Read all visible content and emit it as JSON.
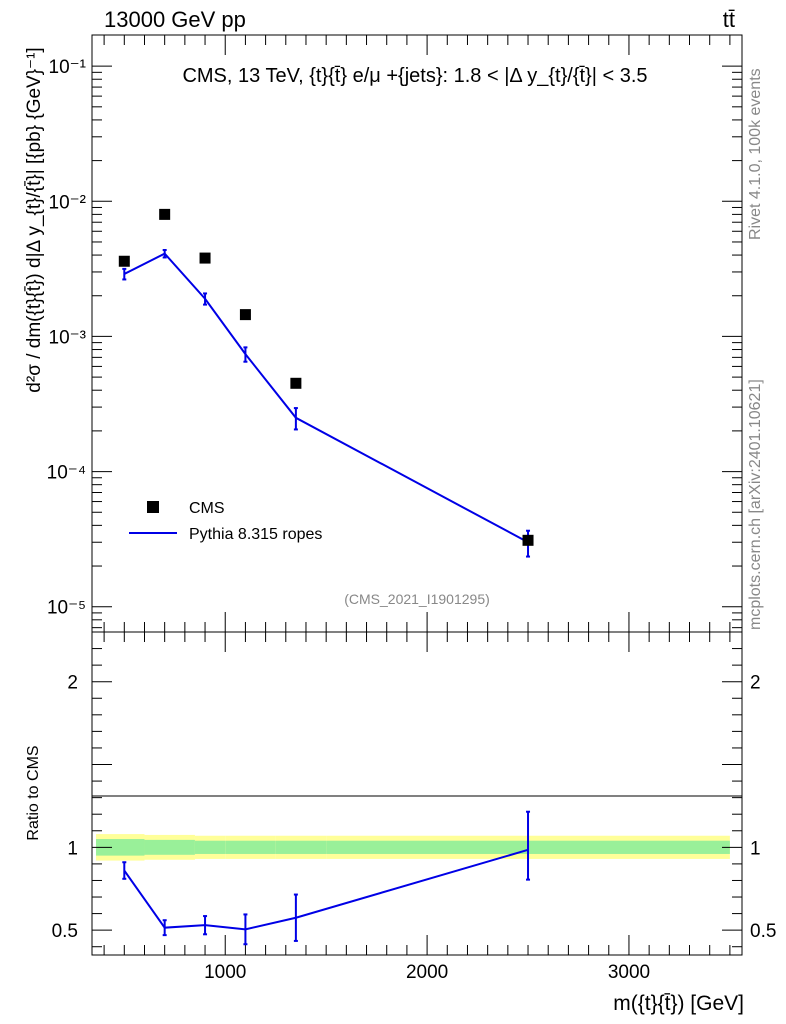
{
  "header": {
    "left": "13000 GeV pp",
    "right": "tt̄"
  },
  "side_labels": {
    "rivet": "Rivet 4.1.0,  100k events",
    "mcplots": "mcplots.cern.ch [arXiv:2401.10621]"
  },
  "colors": {
    "model": "#0000e6",
    "band_inner": "#99f099",
    "band_outer": "#ffff99",
    "data": "#000000"
  },
  "chart_data": [
    {
      "type": "scatter",
      "panel": "main",
      "title": "CMS, 13 TeV, {t}{t̄} e/μ +{jets}: 1.8 < |Δ y_{t}/{t̄}| < 3.5",
      "analysis_id": "(CMS_2021_I1901295)",
      "ylabel": "d²σ / dm({t}{t̄}) d|Δ y_{t}/{t̄}|  [{pb} {GeV}⁻¹]",
      "yscale": "log",
      "xlim": [
        340,
        3560
      ],
      "ylim": [
        6.5e-06,
        0.17
      ],
      "ytick_labels": [
        "10⁻⁵",
        "10⁻⁴",
        "10⁻³",
        "10⁻²",
        "10⁻¹"
      ],
      "ytick_values": [
        1e-05,
        0.0001,
        0.001,
        0.01,
        0.1
      ],
      "legend": {
        "position": "bottom-left",
        "entries": [
          "CMS",
          "Pythia 8.315 ropes"
        ]
      },
      "series": [
        {
          "name": "CMS",
          "kind": "markers",
          "x": [
            500,
            700,
            900,
            1100,
            1350,
            2500
          ],
          "y": [
            0.0036,
            0.008,
            0.0038,
            0.00145,
            0.00045,
            3.1e-05
          ]
        },
        {
          "name": "Pythia 8.315 ropes",
          "kind": "line",
          "x": [
            500,
            700,
            900,
            1100,
            1350,
            2500
          ],
          "y": [
            0.0029,
            0.0041,
            0.0019,
            0.00074,
            0.00025,
            3e-05
          ],
          "err_low": [
            0.00026,
            0.00026,
            0.00018,
            9e-05,
            4.5e-05,
            6.5e-06
          ],
          "err_high": [
            0.00026,
            0.00026,
            0.00018,
            9e-05,
            4.5e-05,
            6.5e-06
          ]
        }
      ]
    },
    {
      "type": "line",
      "panel": "ratio",
      "ylabel": "Ratio to CMS",
      "xlabel": "m({t}{t̄}) [GeV]",
      "xlim": [
        340,
        3560
      ],
      "ylim": [
        0.35,
        2.3
      ],
      "xtick_values": [
        1000,
        2000,
        3000
      ],
      "xtick_labels": [
        "1000",
        "2000",
        "3000"
      ],
      "ytick_values": [
        0.5,
        1,
        2
      ],
      "ytick_labels": [
        "0.5",
        "1",
        "2"
      ],
      "bands": {
        "bins": [
          [
            360,
            600
          ],
          [
            600,
            850
          ],
          [
            850,
            1000
          ],
          [
            1000,
            1250
          ],
          [
            1250,
            1500
          ],
          [
            1500,
            3500
          ]
        ],
        "inner": [
          0.05,
          0.045,
          0.04,
          0.04,
          0.04,
          0.04
        ],
        "outer": [
          0.08,
          0.075,
          0.07,
          0.07,
          0.07,
          0.07
        ]
      },
      "series": [
        {
          "name": "Pythia 8.315 ropes",
          "x": [
            500,
            700,
            900,
            1100,
            1350,
            2500
          ],
          "y": [
            0.86,
            0.515,
            0.53,
            0.505,
            0.575,
            0.985
          ],
          "err_low": [
            0.05,
            0.045,
            0.055,
            0.09,
            0.14,
            0.18
          ],
          "err_high": [
            0.05,
            0.045,
            0.055,
            0.09,
            0.14,
            0.23
          ]
        }
      ]
    }
  ]
}
